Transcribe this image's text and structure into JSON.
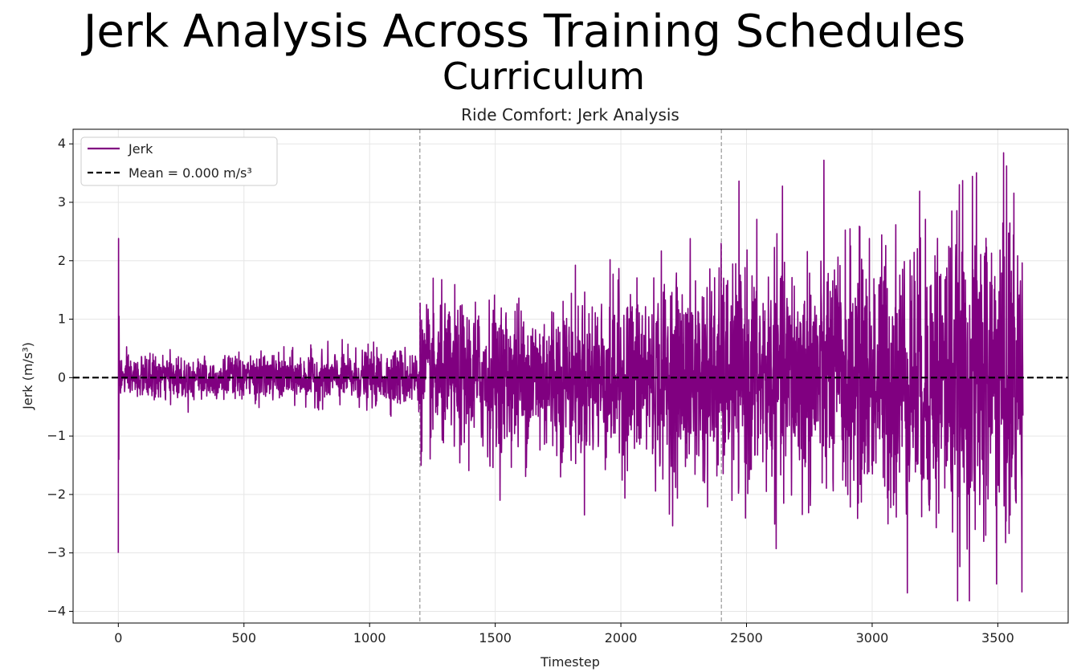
{
  "figure": {
    "suptitle": "Jerk Analysis Across Training Schedules",
    "subtitle": "Curriculum"
  },
  "colors": {
    "series": "#800080",
    "mean": "#000000",
    "phase_line": "#a0a0a0",
    "grid": "#e6e6e6"
  },
  "chart_data": {
    "type": "line",
    "title": "Ride Comfort: Jerk Analysis",
    "xlabel": "Timestep",
    "ylabel": "Jerk (m/s³)",
    "xlim": [
      -180,
      3780
    ],
    "ylim": [
      -4.2,
      4.25
    ],
    "xticks": [
      0,
      500,
      1000,
      1500,
      2000,
      2500,
      3000,
      3500
    ],
    "xtick_labels": [
      "0",
      "500",
      "1000",
      "1500",
      "2000",
      "2500",
      "3000",
      "3500"
    ],
    "yticks": [
      -4,
      -3,
      -2,
      -1,
      0,
      1,
      2,
      3,
      4
    ],
    "ytick_labels": [
      "−4",
      "−3",
      "−2",
      "−1",
      "0",
      "1",
      "2",
      "3",
      "4"
    ],
    "grid": true,
    "legend_position": "upper-left",
    "legend": [
      {
        "label": "Jerk",
        "style": "solid",
        "color": "#800080"
      },
      {
        "label": "Mean = 0.000 m/s³",
        "style": "dashed",
        "color": "#000000"
      }
    ],
    "mean_value": 0.0,
    "phase_boundaries": [
      1200,
      2400
    ],
    "series": [
      {
        "name": "Jerk",
        "color": "#800080",
        "x_start": 0,
        "x_end": 3600,
        "spikes": [
          {
            "x": 0,
            "y": -3.0
          },
          {
            "x": 1,
            "y": 2.38
          },
          {
            "x": 2,
            "y": -1.4
          },
          {
            "x": 3,
            "y": 1.05
          }
        ],
        "segments": [
          {
            "x_from": 4,
            "x_to": 1200,
            "amplitude_envelope": [
              0.42,
              0.45,
              0.6
            ],
            "max": 0.78,
            "min": -0.66
          },
          {
            "x_from": 1200,
            "x_to": 2400,
            "amplitude_envelope": [
              1.4,
              1.6,
              2.2
            ],
            "max": 3.0,
            "min": -3.15
          },
          {
            "x_from": 2400,
            "x_to": 3600,
            "amplitude_envelope": [
              2.2,
              2.6,
              3.7
            ],
            "max": 3.88,
            "min": -3.82
          }
        ],
        "end_value": -0.65
      }
    ]
  }
}
